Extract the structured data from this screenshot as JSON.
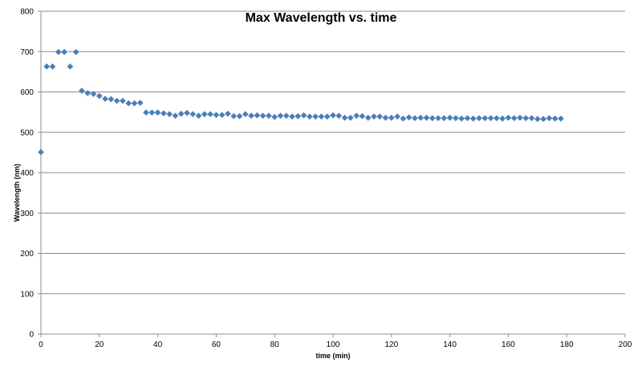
{
  "chart_data": {
    "type": "scatter",
    "title": "Max Wavelength vs. time",
    "xlabel": "time (min)",
    "ylabel": "Wavelength (nm)",
    "xlim": [
      0,
      200
    ],
    "ylim": [
      0,
      800
    ],
    "xticks": [
      0,
      20,
      40,
      60,
      80,
      100,
      120,
      140,
      160,
      180,
      200
    ],
    "yticks": [
      0,
      100,
      200,
      300,
      400,
      500,
      600,
      700,
      800
    ],
    "grid": {
      "x": false,
      "y": true
    },
    "legend": "none",
    "marker": {
      "shape": "diamond",
      "color": "#4a7ebb"
    },
    "gridline_color": "#8c8c8c",
    "series": [
      {
        "x": [
          0,
          2,
          4,
          6,
          8,
          10,
          12,
          14,
          16,
          18,
          20,
          22,
          24,
          26,
          28,
          30,
          32,
          34,
          36,
          38,
          40,
          42,
          44,
          46,
          48,
          50,
          52,
          54,
          56,
          58,
          60,
          62,
          64,
          66,
          68,
          70,
          72,
          74,
          76,
          78,
          80,
          82,
          84,
          86,
          88,
          90,
          92,
          94,
          96,
          98,
          100,
          102,
          104,
          106,
          108,
          110,
          112,
          114,
          116,
          118,
          120,
          122,
          124,
          126,
          128,
          130,
          132,
          134,
          136,
          138,
          140,
          142,
          144,
          146,
          148,
          150,
          152,
          154,
          156,
          158,
          160,
          162,
          164,
          166,
          168,
          170,
          172,
          174,
          176,
          178
        ],
        "y": [
          451,
          663,
          663,
          699,
          699,
          663,
          699,
          603,
          597,
          595,
          590,
          583,
          582,
          578,
          578,
          572,
          572,
          573,
          549,
          549,
          549,
          547,
          545,
          541,
          546,
          548,
          545,
          541,
          545,
          545,
          543,
          543,
          546,
          540,
          540,
          545,
          541,
          542,
          541,
          541,
          538,
          541,
          541,
          539,
          540,
          542,
          539,
          539,
          539,
          539,
          542,
          541,
          536,
          536,
          541,
          540,
          536,
          539,
          539,
          536,
          536,
          539,
          534,
          537,
          535,
          536,
          536,
          535,
          535,
          535,
          536,
          535,
          534,
          535,
          534,
          535,
          535,
          535,
          535,
          534,
          536,
          535,
          536,
          535,
          535,
          533,
          533,
          535,
          534,
          534
        ]
      }
    ]
  }
}
